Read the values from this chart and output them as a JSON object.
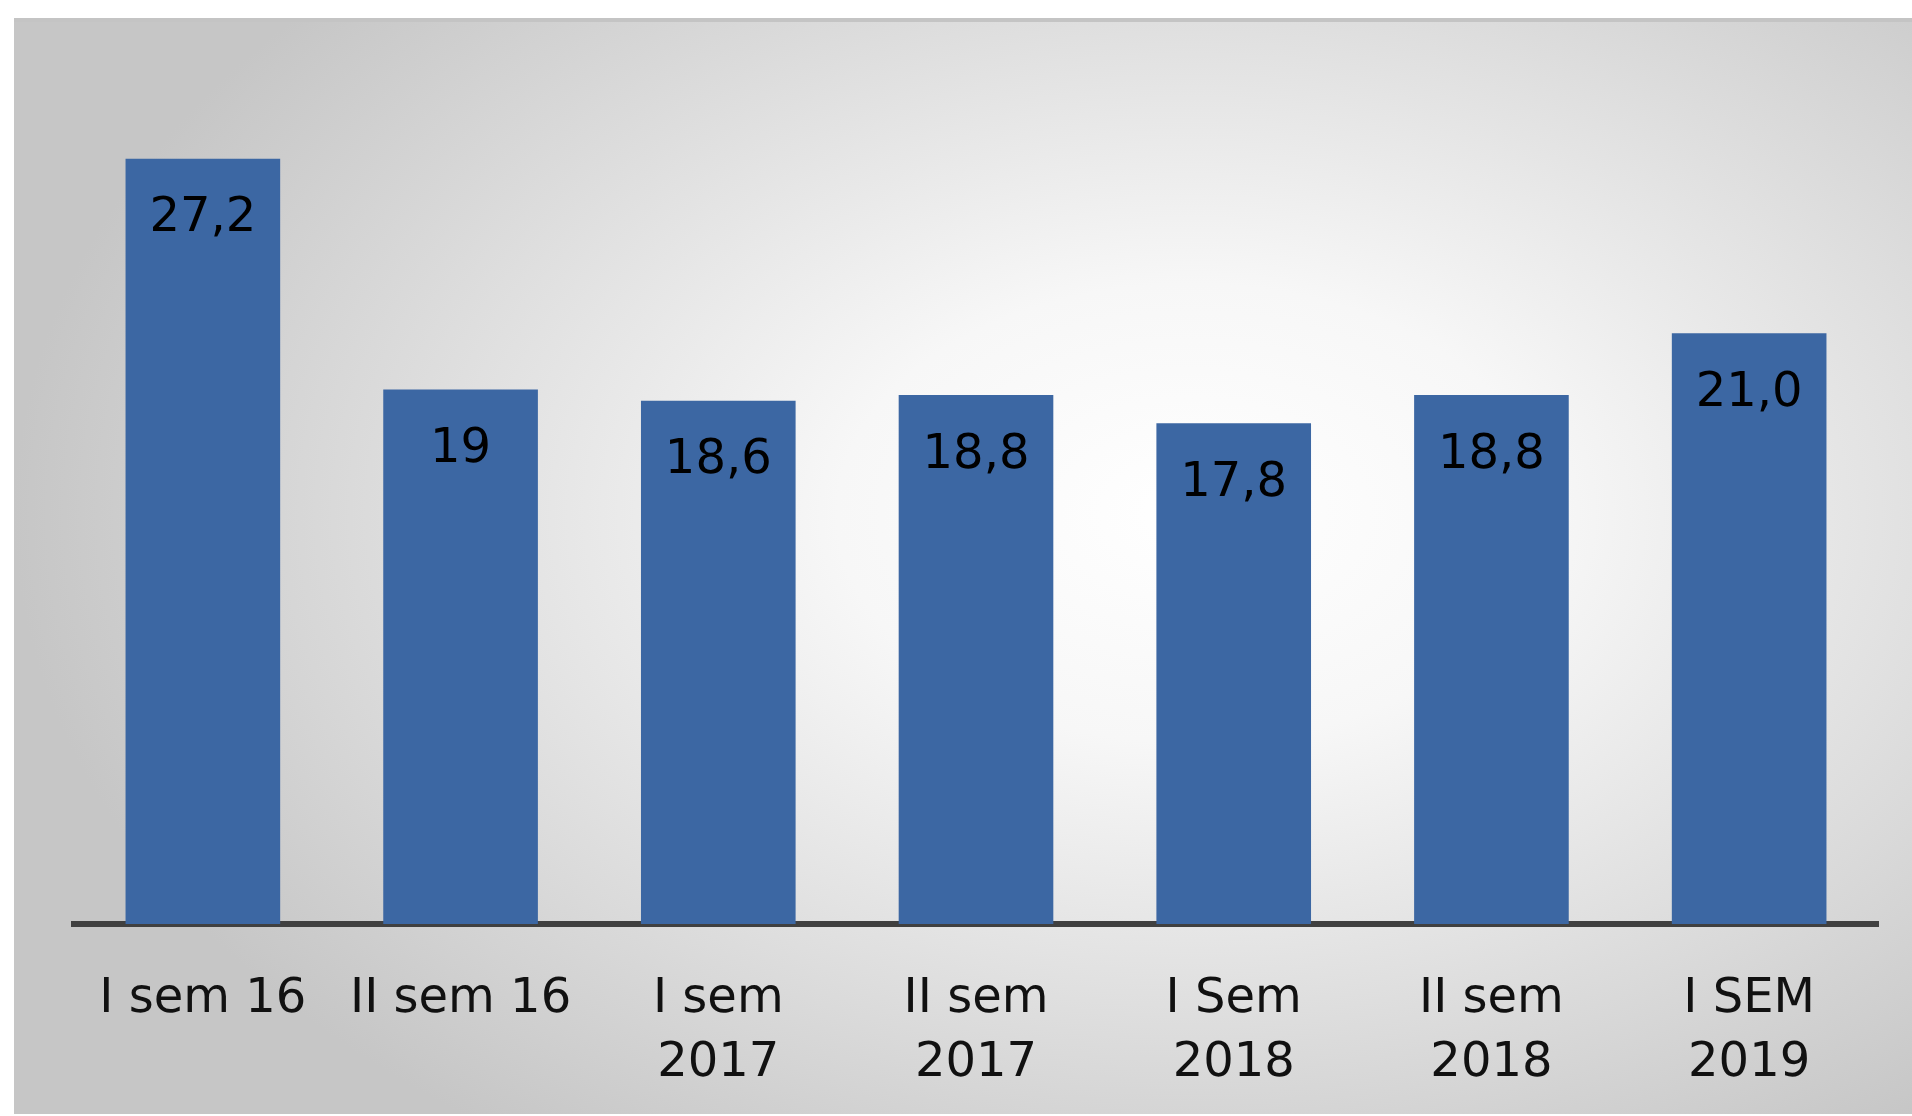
{
  "chart_data": {
    "type": "bar",
    "categories": [
      "I sem 16",
      "II sem 16",
      "I sem 2017",
      "II sem 2017",
      "I Sem 2018",
      "II sem 2018",
      "I SEM 2019"
    ],
    "values": [
      27.2,
      19,
      18.6,
      18.8,
      17.8,
      18.8,
      21.0
    ],
    "value_labels": [
      "27,2",
      "19",
      "18,6",
      "18,8",
      "17,8",
      "18,8",
      "21,0"
    ],
    "color": "#3c67a3",
    "tick_labels": "x"
  }
}
